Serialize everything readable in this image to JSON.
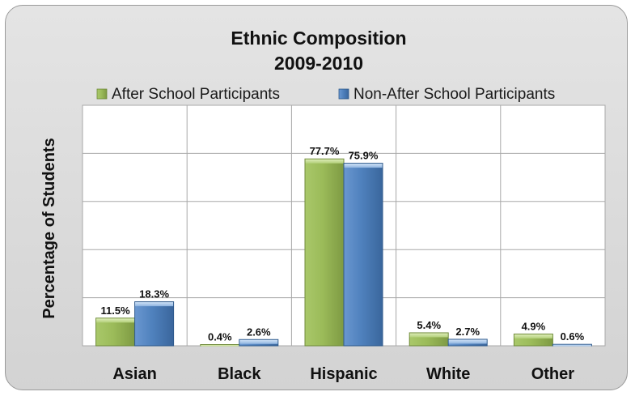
{
  "chart_data": {
    "type": "bar",
    "title": [
      "Ethnic Composition",
      "2009-2010"
    ],
    "ylabel": "Percentage of Students",
    "xlabel": "",
    "categories": [
      "Asian",
      "Black",
      "Hispanic",
      "White",
      "Other"
    ],
    "series": [
      {
        "name": "After School Participants",
        "values": [
          11.5,
          0.4,
          77.7,
          5.4,
          4.9
        ],
        "labels": [
          "11.5%",
          "0.4%",
          "77.7%",
          "5.4%",
          "4.9%"
        ],
        "color": "#9bbb59"
      },
      {
        "name": "Non-After School Participants",
        "values": [
          18.3,
          2.6,
          75.9,
          2.7,
          0.6
        ],
        "labels": [
          "18.3%",
          "2.6%",
          "75.9%",
          "2.7%",
          "0.6%"
        ],
        "color": "#4f81bd"
      }
    ],
    "ylim": [
      0,
      100
    ],
    "grid": true,
    "legend": "top"
  }
}
